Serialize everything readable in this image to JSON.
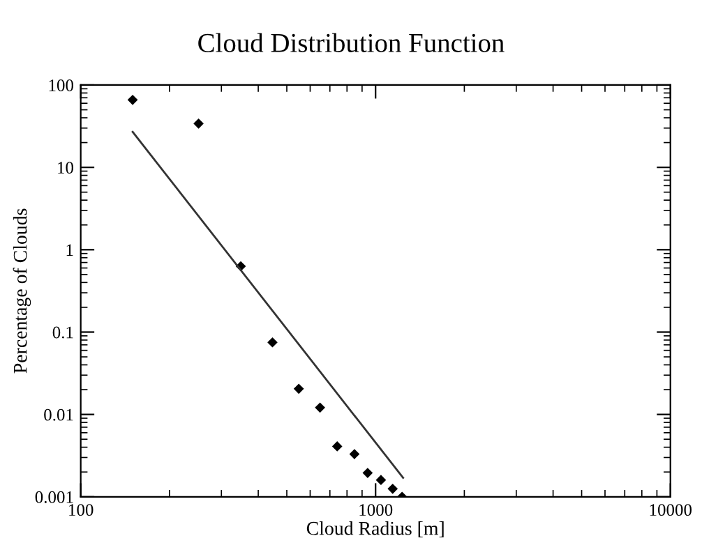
{
  "chart_data": {
    "type": "scatter",
    "title": "Cloud Distribution Function",
    "xlabel": "Cloud Radius [m]",
    "ylabel": "Percentage of Clouds",
    "log": "xy",
    "marker": "diamond",
    "grid": false,
    "xlim": [
      100,
      10000
    ],
    "ylim": [
      0.001,
      100
    ],
    "xticks": [
      100,
      1000,
      10000
    ],
    "yticks": [
      0.001,
      0.01,
      0.1,
      1,
      10,
      100
    ],
    "series": [
      {
        "color": "#000000",
        "x": [
          150,
          251,
          349,
          447,
          549,
          648,
          741,
          848,
          940,
          1043,
          1143,
          1230
        ],
        "values": [
          66,
          34,
          0.63,
          0.075,
          0.0205,
          0.0121,
          0.0041,
          0.0033,
          0.00195,
          0.0016,
          0.00125,
          0.001
        ]
      },
      {
        "type": "line",
        "color": "#333333",
        "line_style": "solid",
        "marker": "none",
        "x": [
          150,
          1240
        ],
        "values": [
          27,
          0.0017
        ]
      }
    ]
  }
}
